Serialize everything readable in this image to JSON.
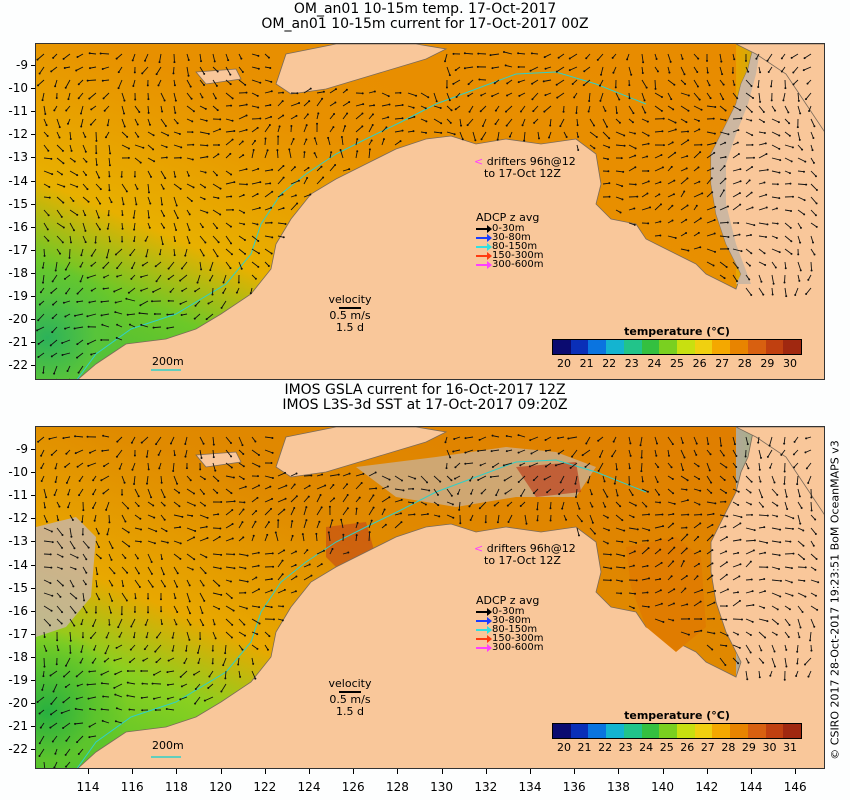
{
  "top": {
    "title1": "OM_an01 10-15m temp. 17-Oct-2017",
    "title2": "OM_an01 10-15m current for 17-Oct-2017 00Z",
    "drifters": [
      "drifters 96h@12",
      "to 17-Oct 12Z"
    ],
    "adcp_title": "ADCP z avg",
    "adcp_items": [
      {
        "label": "0-30m",
        "color": "#000000"
      },
      {
        "label": "30-80m",
        "color": "#1a3cff"
      },
      {
        "label": "80-150m",
        "color": "#30e0e0"
      },
      {
        "label": "150-300m",
        "color": "#ff3a10"
      },
      {
        "label": "300-600m",
        "color": "#ff40ff"
      }
    ],
    "velocity": [
      "velocity",
      "0.5 m/s",
      "1.5 d"
    ],
    "isobath": "200m",
    "colorbar_title": "temperature (°C)",
    "colorbar_ticks": [
      "20",
      "21",
      "22",
      "23",
      "24",
      "25",
      "26",
      "27",
      "28",
      "29",
      "30"
    ]
  },
  "bottom": {
    "title1": "IMOS GSLA current for 16-Oct-2017 12Z",
    "title2": "IMOS L3S-3d SST at 17-Oct-2017 09:20Z",
    "drifters": [
      "drifters 96h@12",
      "to 17-Oct 12Z"
    ],
    "adcp_title": "ADCP z avg",
    "adcp_items": [
      {
        "label": "0-30m",
        "color": "#000000"
      },
      {
        "label": "30-80m",
        "color": "#1a3cff"
      },
      {
        "label": "80-150m",
        "color": "#30e0e0"
      },
      {
        "label": "150-300m",
        "color": "#ff3a10"
      },
      {
        "label": "300-600m",
        "color": "#ff40ff"
      }
    ],
    "velocity": [
      "velocity",
      "0.5 m/s",
      "1.5 d"
    ],
    "isobath": "200m",
    "colorbar_title": "temperature (°C)",
    "colorbar_ticks": [
      "20",
      "21",
      "22",
      "23",
      "24",
      "25",
      "26",
      "27",
      "28",
      "29",
      "30",
      "31"
    ]
  },
  "y_ticks": [
    "-9",
    "-10",
    "-11",
    "-12",
    "-13",
    "-14",
    "-15",
    "-16",
    "-17",
    "-18",
    "-19",
    "-20",
    "-21",
    "-22"
  ],
  "x_ticks": [
    "114",
    "116",
    "118",
    "120",
    "122",
    "124",
    "126",
    "128",
    "130",
    "132",
    "134",
    "136",
    "138",
    "140",
    "142",
    "144",
    "146"
  ],
  "credit": "© CSIRO 2017  28-Oct-2017 19:23:51 BoM OceanMAPS v3",
  "colors": {
    "land": "#f9c79a",
    "coast_shelf": "#c8b5a2",
    "isobath": "#30d0c8",
    "colormap": [
      "#0b0b70",
      "#0a2fb8",
      "#0a74e0",
      "#14b4d0",
      "#22c48a",
      "#34c040",
      "#7ad020",
      "#c8e010",
      "#f0d010",
      "#f4a800",
      "#e88400",
      "#d86010",
      "#c04010",
      "#a02810"
    ]
  }
}
